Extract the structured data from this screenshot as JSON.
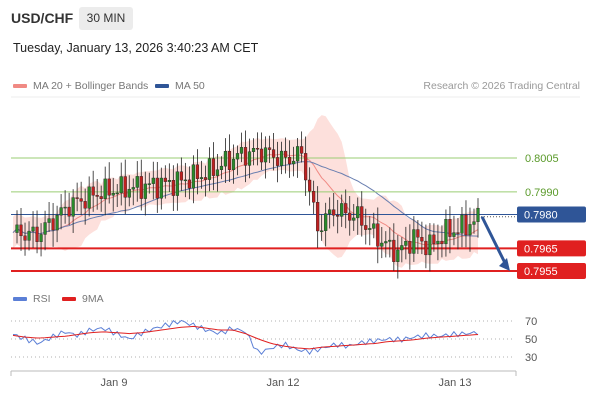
{
  "header": {
    "symbol": "USD/CHF",
    "timeframe": "30 MIN"
  },
  "timestamp": "Tuesday, January 13, 2026 3:40:23 AM CET",
  "legend": {
    "ma20": {
      "label": "MA 20 + Bollinger Bands",
      "color": "#f08a84"
    },
    "ma50": {
      "label": "MA 50",
      "color": "#2f5597"
    },
    "copyright": "Research © 2026 Trading Central"
  },
  "rsi_legend": {
    "rsi": {
      "label": "RSI",
      "color": "#5b7fd6"
    },
    "ma9": {
      "label": "9MA",
      "color": "#e02020"
    }
  },
  "colors": {
    "up": "#2a8a2a",
    "down": "#c02020",
    "band": "#fde0dc",
    "resistance": "#9acd73",
    "support": "#e02020",
    "price": "#2f5597",
    "arrow": "#2f5597"
  },
  "chart_data": [
    {
      "type": "candlestick",
      "title": "USD/CHF",
      "x_ticks": [
        "Jan 9",
        "Jan 12",
        "Jan 13"
      ],
      "ylim": [
        0.795,
        0.802
      ],
      "candles_sample": [
        {
          "o": 0.7976,
          "h": 0.7978,
          "l": 0.7968,
          "c": 0.797
        },
        {
          "o": 0.797,
          "h": 0.7978,
          "l": 0.7968,
          "c": 0.7976
        },
        {
          "o": 0.7976,
          "h": 0.7985,
          "l": 0.7974,
          "c": 0.7983
        },
        {
          "o": 0.7983,
          "h": 0.7992,
          "l": 0.798,
          "c": 0.799
        },
        {
          "o": 0.799,
          "h": 0.7995,
          "l": 0.7985,
          "c": 0.7992
        },
        {
          "o": 0.7992,
          "h": 0.7997,
          "l": 0.7988,
          "c": 0.7994
        },
        {
          "o": 0.7994,
          "h": 0.8011,
          "l": 0.7992,
          "c": 0.8008
        },
        {
          "o": 0.8008,
          "h": 0.8012,
          "l": 0.7998,
          "c": 0.8
        },
        {
          "o": 0.8,
          "h": 0.801,
          "l": 0.7974,
          "c": 0.7976
        },
        {
          "o": 0.7976,
          "h": 0.7984,
          "l": 0.7972,
          "c": 0.7982
        },
        {
          "o": 0.7982,
          "h": 0.7986,
          "l": 0.797,
          "c": 0.7972
        },
        {
          "o": 0.7972,
          "h": 0.7976,
          "l": 0.796,
          "c": 0.7964
        },
        {
          "o": 0.7964,
          "h": 0.7974,
          "l": 0.796,
          "c": 0.797
        },
        {
          "o": 0.797,
          "h": 0.7976,
          "l": 0.7962,
          "c": 0.7966
        },
        {
          "o": 0.7966,
          "h": 0.7974,
          "l": 0.7964,
          "c": 0.7972
        },
        {
          "o": 0.7972,
          "h": 0.7978,
          "l": 0.797,
          "c": 0.7976
        },
        {
          "o": 0.7976,
          "h": 0.798,
          "l": 0.7974,
          "c": 0.7978
        }
      ],
      "levels": [
        {
          "name": "resistance",
          "value": "0.8005",
          "kind": "resistance"
        },
        {
          "name": "resistance",
          "value": "0.7990",
          "kind": "resistance"
        },
        {
          "name": "price",
          "value": "0.7980",
          "kind": "price"
        },
        {
          "name": "support",
          "value": "0.7965",
          "kind": "support"
        },
        {
          "name": "support",
          "value": "0.7955",
          "kind": "support"
        }
      ],
      "forecast_arrow": {
        "from": 0.7979,
        "to": 0.7955,
        "direction": "down"
      }
    },
    {
      "type": "line",
      "series": [
        {
          "name": "RSI"
        },
        {
          "name": "9MA"
        }
      ],
      "y_ticks": [
        "70",
        "50",
        "30"
      ],
      "ylim": [
        20,
        80
      ],
      "rsi_sample": [
        55,
        50,
        45,
        52,
        58,
        54,
        60,
        62,
        56,
        50,
        57,
        62,
        66,
        70,
        65,
        60,
        56,
        62,
        58,
        34,
        40,
        44,
        38,
        36,
        40,
        44,
        42,
        46,
        48,
        50,
        49,
        52,
        54,
        53,
        55,
        56,
        57
      ],
      "ma9_sample": [
        54,
        52,
        51,
        52,
        53,
        55,
        57,
        58,
        57,
        56,
        57,
        59,
        61,
        63,
        64,
        62,
        60,
        60,
        56,
        50,
        45,
        42,
        40,
        39,
        41,
        42,
        43,
        44,
        45,
        47,
        48,
        49,
        51,
        52,
        53,
        54,
        55
      ]
    }
  ]
}
